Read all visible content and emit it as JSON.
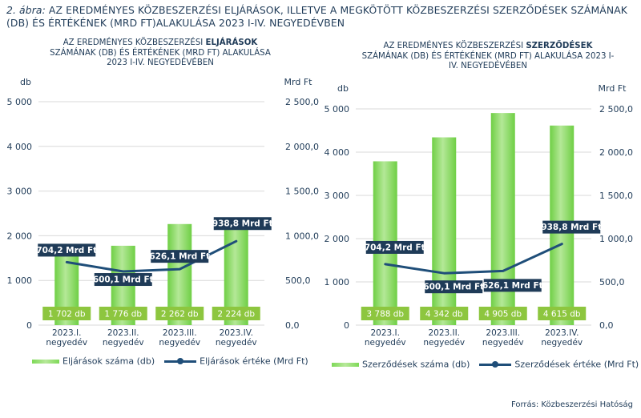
{
  "figure": {
    "title_lead": "2. ábra:",
    "title_rest": " az eredményes közbeszerzési eljárások, illetve a megkötött közbeszerzési szerződések számának (db) és értékének (Mrd Ft)alakulása 2023 I-IV. negyedévben",
    "source": "Forrás: Közbeszerzési Hatóság"
  },
  "chart_data": [
    {
      "type": "bar",
      "title_parts": [
        "AZ EREDMÉNYES KÖZBESZERZÉSI ",
        "ELJÁRÁSOK",
        " SZÁMÁNAK (DB) ÉS ÉRTÉKÉNEK (MRD FT) ALAKULÁSA 2023 I-IV. NEGYEDÉVÉBEN"
      ],
      "categories": [
        "2023.I.\nnegyedév",
        "2023.II.\nnegyedév",
        "2023.III.\nnegyedév",
        "2023.IV.\nnegyedév"
      ],
      "y_left_unit": "db",
      "y_right_unit": "Mrd Ft",
      "y_left_ticks": [
        "0",
        "1 000",
        "2 000",
        "3 000",
        "4 000",
        "5 000"
      ],
      "y_right_ticks": [
        "0,0",
        "500,0",
        "1 000,0",
        "1 500,0",
        "2 000,0",
        "2 500,0"
      ],
      "ylim_left": [
        0,
        5000
      ],
      "ylim_right": [
        0,
        2500
      ],
      "series": [
        {
          "name": "Eljárások száma (db)",
          "type": "bar",
          "axis": "left",
          "values": [
            1702,
            1776,
            2262,
            2224
          ],
          "labels": [
            "1 702 db",
            "1 776 db",
            "2 262 db",
            "2 224 db"
          ]
        },
        {
          "name": "Eljárások értéke (Mrd Ft)",
          "type": "line",
          "axis": "right",
          "values": [
            704.2,
            600.1,
            626.1,
            938.8
          ],
          "labels": [
            "704,2 Mrd Ft",
            "600,1 Mrd Ft",
            "626,1 Mrd Ft",
            "938,8 Mrd Ft"
          ]
        }
      ],
      "colors": {
        "bar": "#7ed957",
        "bar_label_bg": "#8dc63f",
        "line": "#1f4e79",
        "line_label_bg": "#1f3b58"
      },
      "grid": true
    },
    {
      "type": "bar",
      "title_parts": [
        "AZ EREDMÉNYES KÖZBESZERZÉSI ",
        "SZERZŐDÉSEK",
        " SZÁMÁNAK (DB) ÉS ÉRTÉKÉNEK (MRD FT) ALAKULÁSA 2023 I-IV. NEGYEDÉVÉBEN"
      ],
      "categories": [
        "2023.I.\nnegyedév",
        "2023.II.\nnegyedév",
        "2023.III.\nnegyedév",
        "2023.IV.\nnegyedév"
      ],
      "y_left_unit": "db",
      "y_right_unit": "Mrd Ft",
      "y_left_ticks": [
        "0",
        "1 000",
        "2 000",
        "3 000",
        "4 000",
        "5 000"
      ],
      "y_right_ticks": [
        "0,0",
        "500,0",
        "1 000,0",
        "1 500,0",
        "2 000,0",
        "2 500,0"
      ],
      "ylim_left": [
        0,
        5000
      ],
      "ylim_right": [
        0,
        2500
      ],
      "series": [
        {
          "name": "Szerződések száma (db)",
          "type": "bar",
          "axis": "left",
          "values": [
            3788,
            4342,
            4905,
            4615
          ],
          "labels": [
            "3 788 db",
            "4 342 db",
            "4 905 db",
            "4 615 db"
          ]
        },
        {
          "name": "Szerződések értéke (Mrd Ft)",
          "type": "line",
          "axis": "right",
          "values": [
            704.2,
            600.1,
            626.1,
            938.8
          ],
          "labels": [
            "704,2 Mrd Ft",
            "600,1 Mrd Ft",
            "626,1 Mrd Ft",
            "938,8 Mrd Ft"
          ]
        }
      ],
      "colors": {
        "bar": "#7ed957",
        "bar_label_bg": "#8dc63f",
        "line": "#1f4e79",
        "line_label_bg": "#1f3b58"
      },
      "grid": true
    }
  ]
}
